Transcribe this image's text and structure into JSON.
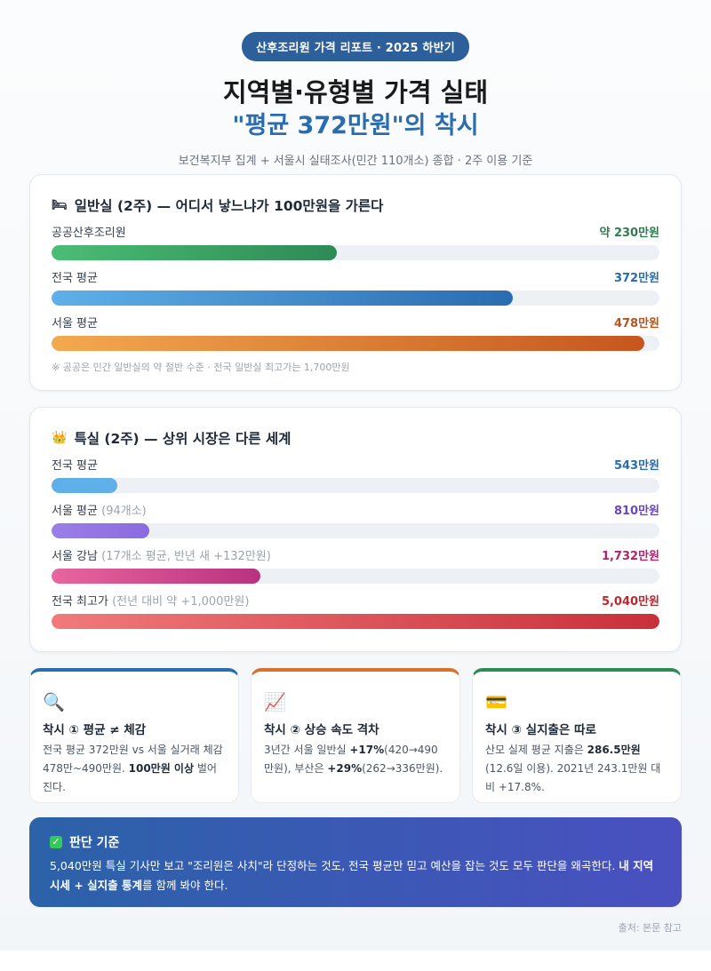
{
  "header": {
    "badge": "산후조리원 가격 리포트 · 2025 하반기",
    "title_line1": "지역별·유형별 가격 실태",
    "title_line2": "\"평균 372만원\"의 착시",
    "subtitle": "보건복지부 집계 + 서울시 실태조사(민간 110개소) 종합 · 2주 이용 기준"
  },
  "chart_data": [
    {
      "type": "bar",
      "title": "일반실 (2주) — 어디서 낳느냐가 100만원을 가른다",
      "unit": "만원",
      "xlim": [
        0,
        490
      ],
      "bars": [
        {
          "label": "공공산후조리원",
          "note": "",
          "value": 230,
          "value_label": "약 230만원",
          "color_from": "#4bbd75",
          "color_to": "#2e8a55",
          "value_color": "#2e7d4f"
        },
        {
          "label": "전국 평균",
          "note": "",
          "value": 372,
          "value_label": "372만원",
          "color_from": "#5fb0e8",
          "color_to": "#2a6cb0",
          "value_color": "#2a6cb0"
        },
        {
          "label": "서울 평균",
          "note": "",
          "value": 478,
          "value_label": "478만원",
          "color_from": "#f3a94f",
          "color_to": "#c5561f",
          "value_color": "#b5541c"
        }
      ],
      "footnote": "※ 공공은 민간 일반실의 약 절반 수준 · 전국 일반실 최고가는 1,700만원"
    },
    {
      "type": "bar",
      "title": "특실 (2주) — 상위 시장은 다른 세계",
      "unit": "만원",
      "xlim": [
        0,
        5040
      ],
      "bars": [
        {
          "label": "전국 평균",
          "note": "",
          "value": 543,
          "value_label": "543만원",
          "color_from": "#5fb0e8",
          "color_to": "#5fb0e8",
          "value_color": "#2a6cb0"
        },
        {
          "label": "서울 평균",
          "note": "(94개소)",
          "value": 810,
          "value_label": "810만원",
          "color_from": "#9b7fe8",
          "color_to": "#8a6be0",
          "value_color": "#6b46c1"
        },
        {
          "label": "서울 강남",
          "note": "(17개소 평균, 반년 새 +132만원)",
          "value": 1732,
          "value_label": "1,732만원",
          "color_from": "#e8669e",
          "color_to": "#b83280",
          "value_color": "#b0246e"
        },
        {
          "label": "전국 최고가",
          "note": "(전년 대비 약 +1,000만원)",
          "value": 5040,
          "value_label": "5,040만원",
          "color_from": "#f07a7a",
          "color_to": "#c9303a",
          "value_color": "#c0262d"
        }
      ]
    }
  ],
  "cards": {
    "general_icon": "bed-icon",
    "special_icon": "crown-icon"
  },
  "insights": [
    {
      "icon": "magnifier-icon",
      "glyph": "🔍",
      "accent": "#2a6cb0",
      "title": "착시 ① 평균 ≠ 체감",
      "body_parts": [
        "전국 평균 372만원 vs 서울 실거래 체감 478만~490만원. ",
        "100만원 이상",
        " 벌어진다."
      ]
    },
    {
      "icon": "chart-up-icon",
      "glyph": "📈",
      "accent": "#d8702e",
      "title": "착시 ② 상승 속도 격차",
      "body_parts": [
        "3년간 서울 일반실 ",
        "+17%",
        "(420→490만원), 부산은 ",
        "+29%",
        "(262→336만원)."
      ]
    },
    {
      "icon": "credit-card-icon",
      "glyph": "💳",
      "accent": "#2e8a55",
      "title": "착시 ③ 실지출은 따로",
      "body_parts": [
        "산모 실제 평균 지출은 ",
        "286.5만원",
        " (12.6일 이용). 2021년 243.1만원 대비 +17.8%."
      ]
    }
  ],
  "verdict": {
    "title": "판단 기준",
    "body_parts": [
      "5,040만원 특실 기사만 보고 \"조리원은 사치\"라 단정하는 것도, 전국 평균만 믿고 예산을 잡는 것도 모두 판단을 왜곡한다. ",
      "내 지역 시세 + 실지출 통계",
      "를 함께 봐야 한다."
    ]
  },
  "source": "출처: 본문 참고"
}
